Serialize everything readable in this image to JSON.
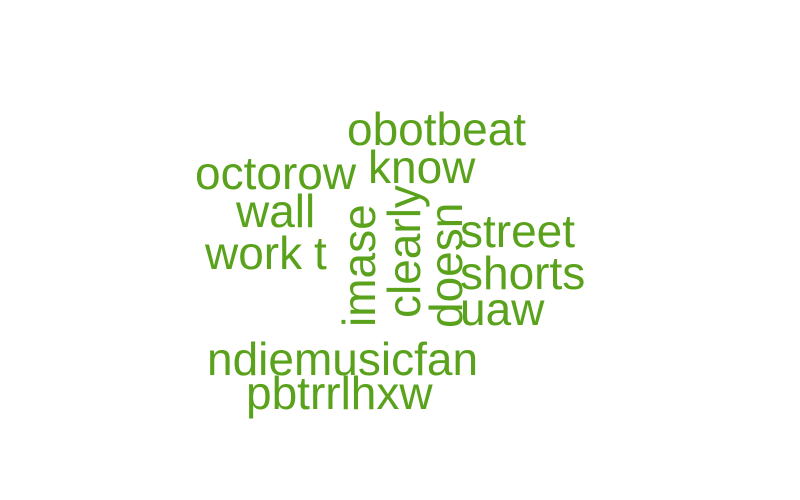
{
  "cloud": {
    "color": "#5aa21c",
    "words": [
      "obotbeat",
      "octorow",
      "know",
      "wall",
      "work",
      "t",
      "imase",
      "clearly",
      "doesn",
      "street",
      "shorts",
      "uaw",
      "ndiemusicfan",
      "pbtrrlhxw"
    ]
  }
}
